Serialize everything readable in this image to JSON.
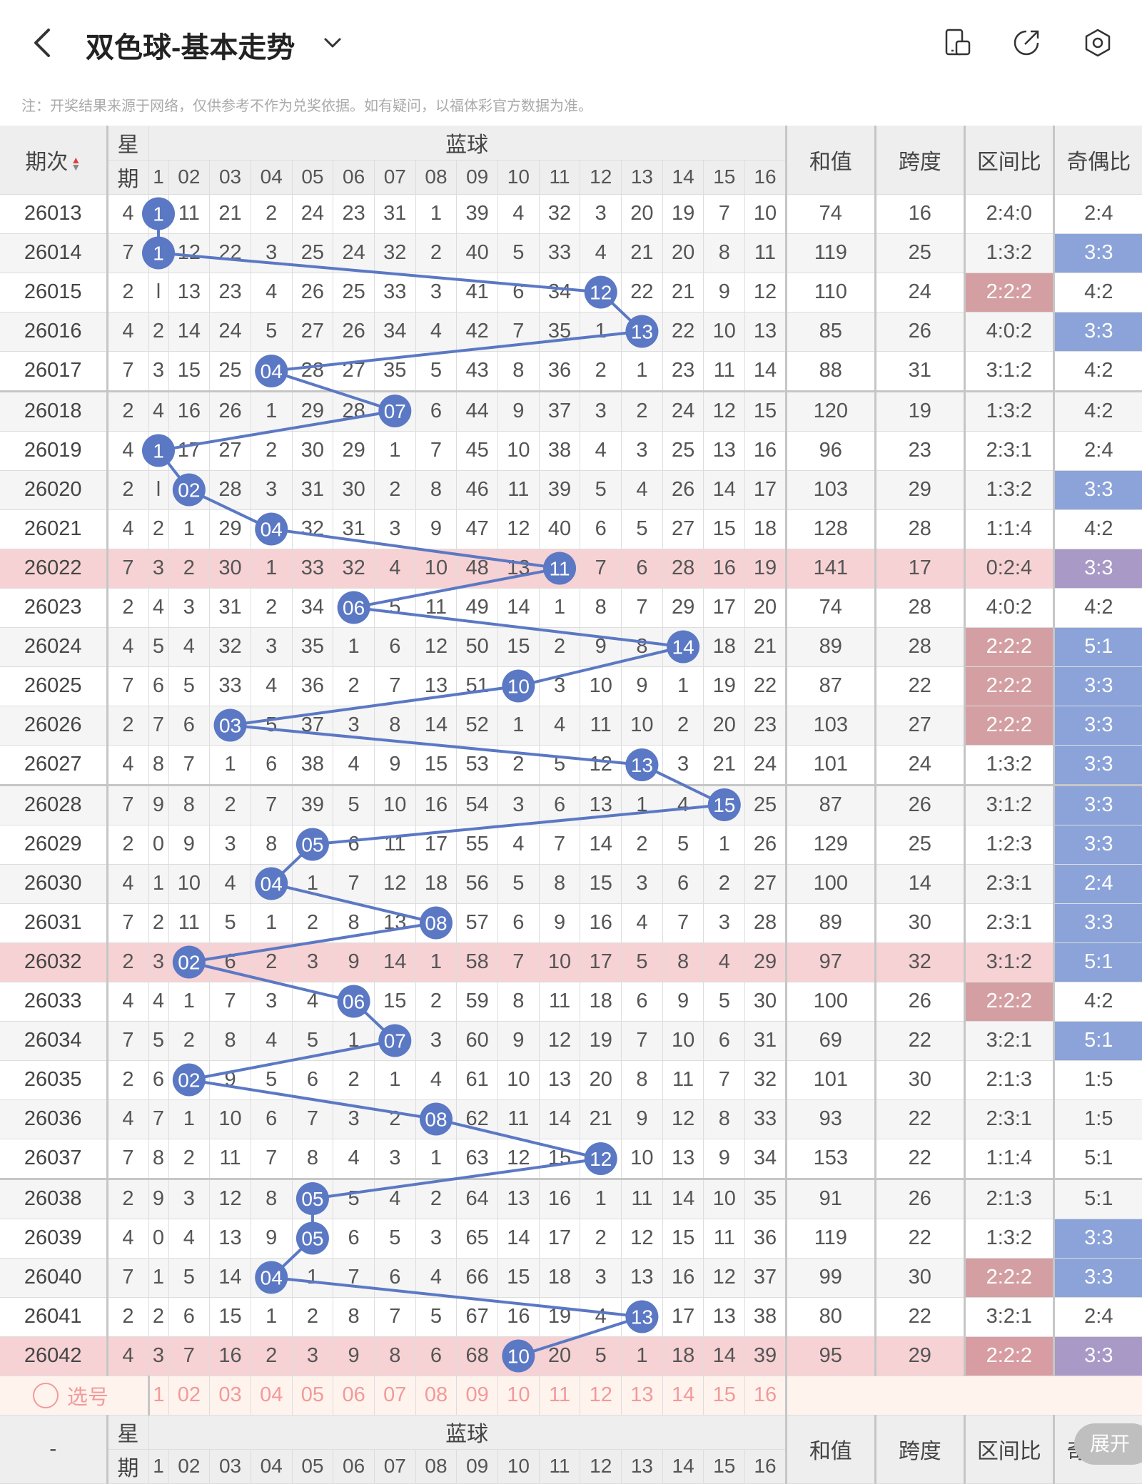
{
  "header": {
    "title": "双色球-基本走势",
    "note": "注：开奖结果来源于网络，仅供参考不作为兑奖依据。如有疑问，以福体彩官方数据为准。"
  },
  "columns": {
    "issue": "期次",
    "week_top": "星",
    "week_bottom": "期",
    "blue": "蓝球",
    "blue_nums": [
      "1",
      "02",
      "03",
      "04",
      "05",
      "06",
      "07",
      "08",
      "09",
      "10",
      "11",
      "12",
      "13",
      "14",
      "15",
      "16"
    ],
    "sum": "和值",
    "span": "跨度",
    "zone": "区间比",
    "parity": "奇偶比"
  },
  "rows": [
    {
      "issue": "26013",
      "week": "4",
      "cells": [
        "1",
        "11",
        "21",
        "2",
        "24",
        "23",
        "31",
        "1",
        "39",
        "4",
        "32",
        "3",
        "20",
        "19",
        "7",
        "10"
      ],
      "hit": 1,
      "sum": "74",
      "span": "16",
      "zone": "2:4:0",
      "parity": "2:4"
    },
    {
      "issue": "26014",
      "week": "7",
      "cells": [
        "1",
        "12",
        "22",
        "3",
        "25",
        "24",
        "32",
        "2",
        "40",
        "5",
        "33",
        "4",
        "21",
        "20",
        "8",
        "11"
      ],
      "hit": 1,
      "sum": "119",
      "span": "25",
      "zone": "1:3:2",
      "parity": "3:3"
    },
    {
      "issue": "26015",
      "week": "2",
      "cells": [
        "l",
        "13",
        "23",
        "4",
        "26",
        "25",
        "33",
        "3",
        "41",
        "6",
        "34",
        "12",
        "22",
        "21",
        "9",
        "12"
      ],
      "hit": 12,
      "sum": "110",
      "span": "24",
      "zone": "2:2:2",
      "parity": "4:2"
    },
    {
      "issue": "26016",
      "week": "4",
      "cells": [
        "2",
        "14",
        "24",
        "5",
        "27",
        "26",
        "34",
        "4",
        "42",
        "7",
        "35",
        "1",
        "13",
        "22",
        "10",
        "13"
      ],
      "hit": 13,
      "sum": "85",
      "span": "26",
      "zone": "4:0:2",
      "parity": "3:3"
    },
    {
      "issue": "26017",
      "week": "7",
      "cells": [
        "3",
        "15",
        "25",
        "04",
        "28",
        "27",
        "35",
        "5",
        "43",
        "8",
        "36",
        "2",
        "1",
        "23",
        "11",
        "14"
      ],
      "hit": 4,
      "sum": "88",
      "span": "31",
      "zone": "3:1:2",
      "parity": "4:2"
    },
    {
      "issue": "26018",
      "week": "2",
      "cells": [
        "4",
        "16",
        "26",
        "1",
        "29",
        "28",
        "07",
        "6",
        "44",
        "9",
        "37",
        "3",
        "2",
        "24",
        "12",
        "15"
      ],
      "hit": 7,
      "sum": "120",
      "span": "19",
      "zone": "1:3:2",
      "parity": "4:2"
    },
    {
      "issue": "26019",
      "week": "4",
      "cells": [
        "1",
        "17",
        "27",
        "2",
        "30",
        "29",
        "1",
        "7",
        "45",
        "10",
        "38",
        "4",
        "3",
        "25",
        "13",
        "16"
      ],
      "hit": 1,
      "sum": "96",
      "span": "23",
      "zone": "2:3:1",
      "parity": "2:4"
    },
    {
      "issue": "26020",
      "week": "2",
      "cells": [
        "l",
        "02",
        "28",
        "3",
        "31",
        "30",
        "2",
        "8",
        "46",
        "11",
        "39",
        "5",
        "4",
        "26",
        "14",
        "17"
      ],
      "hit": 2,
      "sum": "103",
      "span": "29",
      "zone": "1:3:2",
      "parity": "3:3"
    },
    {
      "issue": "26021",
      "week": "4",
      "cells": [
        "2",
        "1",
        "29",
        "04",
        "32",
        "31",
        "3",
        "9",
        "47",
        "12",
        "40",
        "6",
        "5",
        "27",
        "15",
        "18"
      ],
      "hit": 4,
      "sum": "128",
      "span": "28",
      "zone": "1:1:4",
      "parity": "4:2"
    },
    {
      "issue": "26022",
      "week": "7",
      "cells": [
        "3",
        "2",
        "30",
        "1",
        "33",
        "32",
        "4",
        "10",
        "48",
        "13",
        "11",
        "7",
        "6",
        "28",
        "16",
        "19"
      ],
      "hit": 11,
      "sum": "141",
      "span": "17",
      "zone": "0:2:4",
      "parity": "3:3"
    },
    {
      "issue": "26023",
      "week": "2",
      "cells": [
        "4",
        "3",
        "31",
        "2",
        "34",
        "06",
        "5",
        "11",
        "49",
        "14",
        "1",
        "8",
        "7",
        "29",
        "17",
        "20"
      ],
      "hit": 6,
      "sum": "74",
      "span": "28",
      "zone": "4:0:2",
      "parity": "4:2"
    },
    {
      "issue": "26024",
      "week": "4",
      "cells": [
        "5",
        "4",
        "32",
        "3",
        "35",
        "1",
        "6",
        "12",
        "50",
        "15",
        "2",
        "9",
        "8",
        "14",
        "18",
        "21"
      ],
      "hit": 14,
      "sum": "89",
      "span": "28",
      "zone": "2:2:2",
      "parity": "5:1"
    },
    {
      "issue": "26025",
      "week": "7",
      "cells": [
        "6",
        "5",
        "33",
        "4",
        "36",
        "2",
        "7",
        "13",
        "51",
        "10",
        "3",
        "10",
        "9",
        "1",
        "19",
        "22"
      ],
      "hit": 10,
      "sum": "87",
      "span": "22",
      "zone": "2:2:2",
      "parity": "3:3"
    },
    {
      "issue": "26026",
      "week": "2",
      "cells": [
        "7",
        "6",
        "03",
        "5",
        "37",
        "3",
        "8",
        "14",
        "52",
        "1",
        "4",
        "11",
        "10",
        "2",
        "20",
        "23"
      ],
      "hit": 3,
      "sum": "103",
      "span": "27",
      "zone": "2:2:2",
      "parity": "3:3"
    },
    {
      "issue": "26027",
      "week": "4",
      "cells": [
        "8",
        "7",
        "1",
        "6",
        "38",
        "4",
        "9",
        "15",
        "53",
        "2",
        "5",
        "12",
        "13",
        "3",
        "21",
        "24"
      ],
      "hit": 13,
      "sum": "101",
      "span": "24",
      "zone": "1:3:2",
      "parity": "3:3"
    },
    {
      "issue": "26028",
      "week": "7",
      "cells": [
        "9",
        "8",
        "2",
        "7",
        "39",
        "5",
        "10",
        "16",
        "54",
        "3",
        "6",
        "13",
        "1",
        "4",
        "15",
        "25"
      ],
      "hit": 15,
      "sum": "87",
      "span": "26",
      "zone": "3:1:2",
      "parity": "3:3"
    },
    {
      "issue": "26029",
      "week": "2",
      "cells": [
        "0",
        "9",
        "3",
        "8",
        "05",
        "6",
        "11",
        "17",
        "55",
        "4",
        "7",
        "14",
        "2",
        "5",
        "1",
        "26"
      ],
      "hit": 5,
      "sum": "129",
      "span": "25",
      "zone": "1:2:3",
      "parity": "3:3"
    },
    {
      "issue": "26030",
      "week": "4",
      "cells": [
        "1",
        "10",
        "4",
        "04",
        "1",
        "7",
        "12",
        "18",
        "56",
        "5",
        "8",
        "15",
        "3",
        "6",
        "2",
        "27"
      ],
      "hit": 4,
      "sum": "100",
      "span": "14",
      "zone": "2:3:1",
      "parity": "2:4"
    },
    {
      "issue": "26031",
      "week": "7",
      "cells": [
        "2",
        "11",
        "5",
        "1",
        "2",
        "8",
        "13",
        "08",
        "57",
        "6",
        "9",
        "16",
        "4",
        "7",
        "3",
        "28"
      ],
      "hit": 8,
      "sum": "89",
      "span": "30",
      "zone": "2:3:1",
      "parity": "3:3"
    },
    {
      "issue": "26032",
      "week": "2",
      "cells": [
        "3",
        "02",
        "6",
        "2",
        "3",
        "9",
        "14",
        "1",
        "58",
        "7",
        "10",
        "17",
        "5",
        "8",
        "4",
        "29"
      ],
      "hit": 2,
      "sum": "97",
      "span": "32",
      "zone": "3:1:2",
      "parity": "5:1"
    },
    {
      "issue": "26033",
      "week": "4",
      "cells": [
        "4",
        "1",
        "7",
        "3",
        "4",
        "06",
        "15",
        "2",
        "59",
        "8",
        "11",
        "18",
        "6",
        "9",
        "5",
        "30"
      ],
      "hit": 6,
      "sum": "100",
      "span": "26",
      "zone": "2:2:2",
      "parity": "4:2"
    },
    {
      "issue": "26034",
      "week": "7",
      "cells": [
        "5",
        "2",
        "8",
        "4",
        "5",
        "1",
        "07",
        "3",
        "60",
        "9",
        "12",
        "19",
        "7",
        "10",
        "6",
        "31"
      ],
      "hit": 7,
      "sum": "69",
      "span": "22",
      "zone": "3:2:1",
      "parity": "5:1"
    },
    {
      "issue": "26035",
      "week": "2",
      "cells": [
        "6",
        "02",
        "9",
        "5",
        "6",
        "2",
        "1",
        "4",
        "61",
        "10",
        "13",
        "20",
        "8",
        "11",
        "7",
        "32"
      ],
      "hit": 2,
      "sum": "101",
      "span": "30",
      "zone": "2:1:3",
      "parity": "1:5"
    },
    {
      "issue": "26036",
      "week": "4",
      "cells": [
        "7",
        "1",
        "10",
        "6",
        "7",
        "3",
        "2",
        "08",
        "62",
        "11",
        "14",
        "21",
        "9",
        "12",
        "8",
        "33"
      ],
      "hit": 8,
      "sum": "93",
      "span": "22",
      "zone": "2:3:1",
      "parity": "1:5"
    },
    {
      "issue": "26037",
      "week": "7",
      "cells": [
        "8",
        "2",
        "11",
        "7",
        "8",
        "4",
        "3",
        "1",
        "63",
        "12",
        "15",
        "12",
        "10",
        "13",
        "9",
        "34"
      ],
      "hit": 12,
      "sum": "153",
      "span": "22",
      "zone": "1:1:4",
      "parity": "5:1"
    },
    {
      "issue": "26038",
      "week": "2",
      "cells": [
        "9",
        "3",
        "12",
        "8",
        "05",
        "5",
        "4",
        "2",
        "64",
        "13",
        "16",
        "1",
        "11",
        "14",
        "10",
        "35"
      ],
      "hit": 5,
      "sum": "91",
      "span": "26",
      "zone": "2:1:3",
      "parity": "5:1"
    },
    {
      "issue": "26039",
      "week": "4",
      "cells": [
        "0",
        "4",
        "13",
        "9",
        "05",
        "6",
        "5",
        "3",
        "65",
        "14",
        "17",
        "2",
        "12",
        "15",
        "11",
        "36"
      ],
      "hit": 5,
      "sum": "119",
      "span": "22",
      "zone": "1:3:2",
      "parity": "3:3"
    },
    {
      "issue": "26040",
      "week": "7",
      "cells": [
        "1",
        "5",
        "14",
        "04",
        "1",
        "7",
        "6",
        "4",
        "66",
        "15",
        "18",
        "3",
        "13",
        "16",
        "12",
        "37"
      ],
      "hit": 4,
      "sum": "99",
      "span": "30",
      "zone": "2:2:2",
      "parity": "3:3"
    },
    {
      "issue": "26041",
      "week": "2",
      "cells": [
        "2",
        "6",
        "15",
        "1",
        "2",
        "8",
        "7",
        "5",
        "67",
        "16",
        "19",
        "4",
        "13",
        "17",
        "13",
        "38"
      ],
      "hit": 13,
      "sum": "80",
      "span": "22",
      "zone": "3:2:1",
      "parity": "2:4"
    },
    {
      "issue": "26042",
      "week": "4",
      "cells": [
        "3",
        "7",
        "16",
        "2",
        "3",
        "9",
        "8",
        "6",
        "68",
        "10",
        "20",
        "5",
        "1",
        "18",
        "14",
        "39"
      ],
      "hit": 10,
      "sum": "95",
      "span": "29",
      "zone": "2:2:2",
      "parity": "3:3"
    }
  ],
  "select_row": {
    "label": "选号"
  },
  "footer_row": {
    "issue": "-"
  },
  "expand_label": "展开",
  "colors": {
    "ball": "#5b78c4",
    "blue_cell": "#8ba3d9",
    "red_cell": "#d49fa2",
    "highlight_row": "#f6d2d4"
  }
}
